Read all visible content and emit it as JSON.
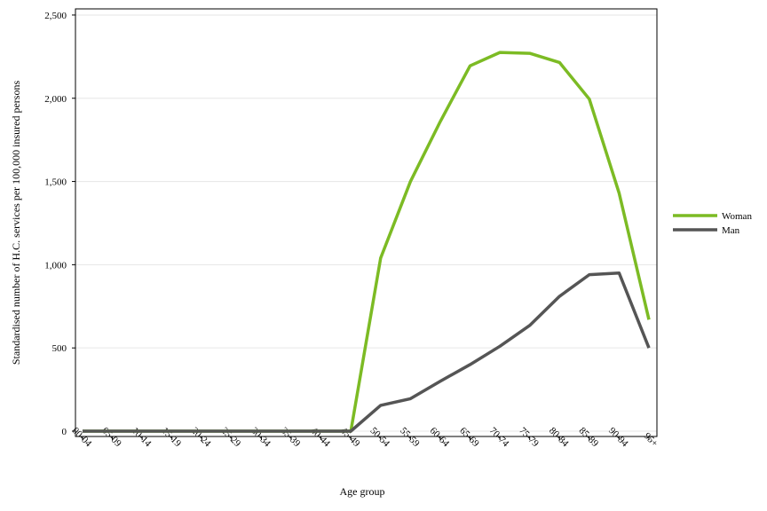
{
  "chart_data": {
    "type": "line",
    "x_label": "Age group",
    "y_label": "Standardised number of H.C. services per 100,000 insured persons",
    "categories": [
      "00-04",
      "05-09",
      "10-14",
      "15-19",
      "20-24",
      "25-29",
      "30-34",
      "35-39",
      "40-44",
      "45-49",
      "50-54",
      "55-59",
      "60-64",
      "65-69",
      "70-74",
      "75-79",
      "80-84",
      "85-89",
      "90-94",
      "95+"
    ],
    "series": [
      {
        "name": "Woman",
        "color": "#7cbb24",
        "values": [
          0,
          0,
          0,
          0,
          0,
          0,
          0,
          0,
          0,
          0,
          1040,
          1500,
          1860,
          2195,
          2275,
          2270,
          2215,
          1995,
          1430,
          670
        ]
      },
      {
        "name": "Man",
        "color": "#555555",
        "values": [
          0,
          0,
          0,
          0,
          0,
          0,
          0,
          0,
          0,
          0,
          155,
          195,
          300,
          400,
          510,
          635,
          810,
          940,
          950,
          500
        ]
      }
    ],
    "ylim": [
      -32,
      2537
    ],
    "yticks": [
      0,
      500,
      {
        "value": 1000,
        "label": "1,000"
      },
      {
        "value": 1500,
        "label": "1,500"
      },
      {
        "value": 2000,
        "label": "2,000"
      },
      {
        "value": 2500,
        "label": "2,500"
      }
    ],
    "grid": true,
    "legend": "right"
  }
}
